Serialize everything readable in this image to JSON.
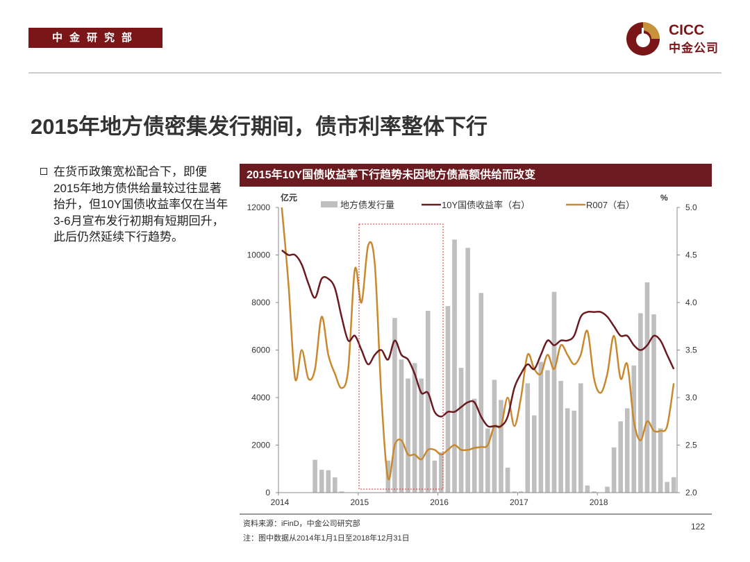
{
  "header": {
    "dept": "中金研究部",
    "logo_en": "CICC",
    "logo_cn": "中金公司",
    "brand_color": "#7a1518",
    "accent_color": "#c8923a"
  },
  "title": "2015年地方债密集发行期间，债市利率整体下行",
  "bullet": "在货币政策宽松配合下，即便2015年地方债供给量较过往显著抬升，但10Y国债收益率仅在当年3-6月宣布发行初期有短期回升，此后仍然延续下行趋势。",
  "chart_title": "2015年10Y国债收益率下行趋势未因地方债高额供给而改变",
  "chart_data": {
    "type": "bar+line",
    "left_unit": "亿元",
    "right_unit": "%",
    "ylim_left": [
      0,
      12000
    ],
    "ylim_right": [
      2.0,
      5.0
    ],
    "left_ticks": [
      "0",
      "2000",
      "4000",
      "6000",
      "8000",
      "10000",
      "12000"
    ],
    "right_ticks": [
      "2.0",
      "2.5",
      "3.0",
      "3.5",
      "4.0",
      "4.5",
      "5.0"
    ],
    "x_ticks": [
      "2014",
      "2015",
      "2016",
      "2017",
      "2018"
    ],
    "x_start": "2014-01",
    "x_end": "2018-12",
    "frequency": "monthly",
    "highlight_period": [
      "2015-01",
      "2015-12"
    ],
    "series": [
      {
        "name": "地方债发行量",
        "type": "bar",
        "axis": "left",
        "color": "#bfbfbf",
        "values": [
          0,
          0,
          0,
          0,
          0,
          1380,
          960,
          940,
          640,
          50,
          0,
          0,
          0,
          0,
          0,
          0,
          1350,
          7350,
          5600,
          4800,
          5450,
          4800,
          7650,
          1350,
          1700,
          7850,
          10650,
          5250,
          10300,
          3950,
          8400,
          2700,
          4750,
          3900,
          1050,
          50,
          50,
          4600,
          3250,
          5500,
          5150,
          8450,
          4700,
          3550,
          3450,
          4600,
          300,
          50,
          0,
          250,
          1900,
          3000,
          3550,
          5350,
          7550,
          8850,
          7500,
          2700,
          450,
          650
        ]
      },
      {
        "name": "10Y国债收益率（右）",
        "type": "line",
        "axis": "right",
        "color": "#6b1a1f",
        "values": [
          4.55,
          4.5,
          4.5,
          4.4,
          4.2,
          4.05,
          4.25,
          4.25,
          4.15,
          3.85,
          3.6,
          3.65,
          3.5,
          3.35,
          3.45,
          3.5,
          3.4,
          3.6,
          3.45,
          3.4,
          3.25,
          3.05,
          3.05,
          2.85,
          2.8,
          2.85,
          2.85,
          2.9,
          2.95,
          2.95,
          2.8,
          2.7,
          2.7,
          2.7,
          2.8,
          3.1,
          3.25,
          3.35,
          3.3,
          3.45,
          3.6,
          3.55,
          3.6,
          3.6,
          3.65,
          3.85,
          3.9,
          3.9,
          3.9,
          3.85,
          3.75,
          3.65,
          3.65,
          3.55,
          3.5,
          3.55,
          3.65,
          3.6,
          3.45,
          3.3
        ]
      },
      {
        "name": "R007（右）",
        "type": "line",
        "axis": "right",
        "color": "#c8892e",
        "values": [
          5.0,
          4.2,
          3.2,
          3.5,
          3.2,
          3.3,
          3.85,
          3.45,
          3.25,
          3.1,
          3.3,
          4.35,
          4.0,
          4.6,
          4.4,
          3.0,
          2.15,
          2.5,
          2.55,
          2.4,
          2.4,
          2.35,
          2.45,
          2.45,
          2.4,
          2.45,
          2.5,
          2.45,
          2.45,
          2.47,
          2.48,
          2.5,
          2.7,
          2.7,
          3.0,
          2.7,
          3.0,
          3.45,
          3.3,
          3.25,
          3.45,
          3.3,
          3.55,
          3.45,
          3.35,
          3.45,
          3.7,
          3.2,
          3.05,
          3.25,
          3.65,
          3.2,
          3.35,
          2.75,
          2.55,
          2.75,
          2.65,
          2.65,
          2.7,
          3.15
        ]
      }
    ]
  },
  "footer": {
    "source": "资料来源：iFinD，中金公司研究部",
    "note": "注：图中数据从2014年1月1日至2018年12月31日",
    "page": "122"
  }
}
